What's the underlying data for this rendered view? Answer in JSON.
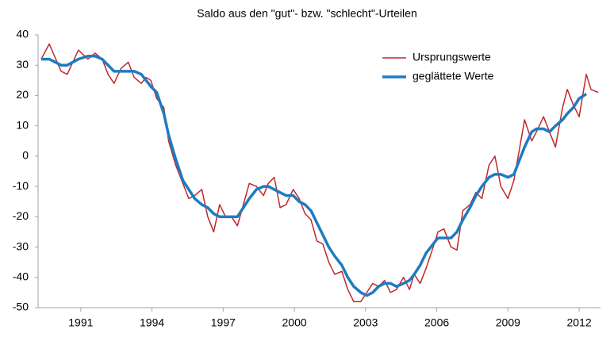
{
  "chart_data": {
    "type": "line",
    "title": "Saldo aus den \"gut\"- bzw. \"schlecht\"-Urteilen",
    "x": [
      1989.33,
      1989.67,
      1990.17,
      1990.43,
      1990.9,
      1991.3,
      1991.6,
      1991.9,
      1992.15,
      1992.4,
      1992.7,
      1993.0,
      1993.25,
      1993.55,
      1993.75,
      1993.95,
      1994.2,
      1994.5,
      1994.7,
      1995.0,
      1995.3,
      1995.55,
      1995.8,
      1996.1,
      1996.35,
      1996.6,
      1996.85,
      1997.1,
      1997.35,
      1997.6,
      1997.85,
      1998.1,
      1998.4,
      1998.7,
      1998.9,
      1999.15,
      1999.4,
      1999.65,
      1999.95,
      2000.2,
      2000.45,
      2000.7,
      2000.95,
      2001.2,
      2001.45,
      2001.7,
      2002.0,
      2002.25,
      2002.5,
      2002.8,
      2003.05,
      2003.3,
      2003.55,
      2003.8,
      2004.05,
      2004.3,
      2004.6,
      2004.85,
      2005.05,
      2005.3,
      2005.55,
      2005.85,
      2006.05,
      2006.3,
      2006.6,
      2006.85,
      2007.1,
      2007.4,
      2007.65,
      2007.9,
      2008.2,
      2008.45,
      2008.7,
      2009.0,
      2009.25,
      2009.5,
      2009.7,
      2010.0,
      2010.2,
      2010.5,
      2010.75,
      2011.0,
      2011.3,
      2011.5,
      2011.75,
      2012.0,
      2012.3,
      2012.5,
      2012.8
    ],
    "series": [
      {
        "name": "Ursprungswerte",
        "color": "#c0272d",
        "width": 1.5,
        "values": [
          32,
          37,
          28,
          27,
          35,
          32,
          34,
          32,
          27,
          24,
          29,
          31,
          26,
          24,
          26,
          25,
          19,
          16,
          5,
          -3,
          -9,
          -14,
          -13,
          -11,
          -20,
          -25,
          -16,
          -20,
          -20,
          -23,
          -16,
          -9,
          -10,
          -13,
          -9,
          -7,
          -17,
          -16,
          -11,
          -14,
          -19,
          -21,
          -28,
          -29,
          -35,
          -39,
          -38,
          -44,
          -48,
          -48,
          -45,
          -42,
          -43,
          -41,
          -45,
          -44,
          -40,
          -44,
          -39,
          -42,
          -37,
          -30,
          -25,
          -24,
          -30,
          -31,
          -18,
          -16,
          -12,
          -14,
          -3,
          0,
          -10,
          -14,
          -8,
          3,
          12,
          5,
          8,
          13,
          8,
          3,
          16,
          22,
          17,
          13,
          27,
          22,
          21
        ]
      },
      {
        "name": "geglättete Werte",
        "color": "#1f7bc1",
        "width": 3.5,
        "values": [
          32,
          32,
          30,
          30,
          32,
          33,
          33,
          32,
          30,
          28,
          28,
          28,
          28,
          27,
          25,
          23,
          21,
          14,
          7,
          -1,
          -8,
          -11,
          -14,
          -16,
          -17,
          -19,
          -20,
          -20,
          -20,
          -20,
          -17,
          -14,
          -11,
          -10,
          -10,
          -11,
          -12,
          -13,
          -13,
          -15,
          -16,
          -18,
          -22,
          -26,
          -30,
          -33,
          -36,
          -40,
          -43,
          -45,
          -46,
          -45,
          -43,
          -42,
          -42,
          -43,
          -42,
          -41,
          -39,
          -36,
          -32,
          -29,
          -27,
          -27,
          -27,
          -25,
          -21,
          -17,
          -13,
          -10,
          -7,
          -6,
          -6,
          -7,
          -6,
          -1,
          3,
          8,
          9,
          9,
          8,
          10,
          12,
          14,
          16,
          19,
          20.5,
          null,
          null
        ]
      }
    ],
    "xlim": [
      1989.2,
      2012.9
    ],
    "xticks": [
      1991,
      1994,
      1997,
      2000,
      2003,
      2006,
      2009,
      2012
    ],
    "ylim": [
      -50,
      40
    ],
    "yticks": [
      -50,
      -40,
      -30,
      -20,
      -10,
      0,
      10,
      20,
      30,
      40
    ],
    "legend": "upper right"
  }
}
